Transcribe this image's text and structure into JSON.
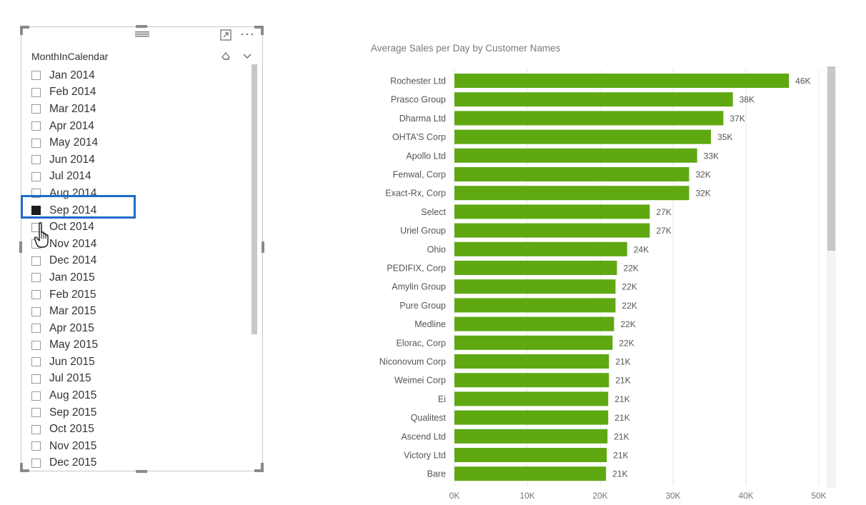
{
  "slicer": {
    "title": "MonthInCalendar",
    "selected": "Sep 2014",
    "items": [
      {
        "label": "Jan 2014",
        "checked": false
      },
      {
        "label": "Feb 2014",
        "checked": false
      },
      {
        "label": "Mar 2014",
        "checked": false
      },
      {
        "label": "Apr 2014",
        "checked": false
      },
      {
        "label": "May 2014",
        "checked": false
      },
      {
        "label": "Jun 2014",
        "checked": false
      },
      {
        "label": "Jul 2014",
        "checked": false
      },
      {
        "label": "Aug 2014",
        "checked": false
      },
      {
        "label": "Sep 2014",
        "checked": true
      },
      {
        "label": "Oct 2014",
        "checked": false
      },
      {
        "label": "Nov 2014",
        "checked": false
      },
      {
        "label": "Dec 2014",
        "checked": false
      },
      {
        "label": "Jan 2015",
        "checked": false
      },
      {
        "label": "Feb 2015",
        "checked": false
      },
      {
        "label": "Mar 2015",
        "checked": false
      },
      {
        "label": "Apr 2015",
        "checked": false
      },
      {
        "label": "May 2015",
        "checked": false
      },
      {
        "label": "Jun 2015",
        "checked": false
      },
      {
        "label": "Jul 2015",
        "checked": false
      },
      {
        "label": "Aug 2015",
        "checked": false
      },
      {
        "label": "Sep 2015",
        "checked": false
      },
      {
        "label": "Oct 2015",
        "checked": false
      },
      {
        "label": "Nov 2015",
        "checked": false
      },
      {
        "label": "Dec 2015",
        "checked": false
      }
    ],
    "more_label": "···"
  },
  "colors": {
    "bar": "#5fa811",
    "highlight": "#1e6ac9",
    "grid": "#e6e6e6"
  },
  "chart_data": {
    "type": "bar",
    "orientation": "horizontal",
    "title": "Average Sales per Day by Customer Names",
    "categories": [
      "Rochester Ltd",
      "Prasco Group",
      "Dharma Ltd",
      "OHTA'S Corp",
      "Apollo Ltd",
      "Fenwal, Corp",
      "Exact-Rx, Corp",
      "Select",
      "Uriel Group",
      "Ohio",
      "PEDIFIX, Corp",
      "Amylin Group",
      "Pure Group",
      "Medline",
      "Elorac, Corp",
      "Niconovum Corp",
      "Weimei Corp",
      "Ei",
      "Qualitest",
      "Ascend Ltd",
      "Victory Ltd",
      "Bare"
    ],
    "values": [
      45900,
      38200,
      36900,
      35200,
      33300,
      32200,
      32200,
      26800,
      26800,
      23700,
      22300,
      22100,
      22100,
      21900,
      21700,
      21200,
      21200,
      21100,
      21100,
      21000,
      20900,
      20800
    ],
    "value_labels": [
      "46K",
      "38K",
      "37K",
      "35K",
      "33K",
      "32K",
      "32K",
      "27K",
      "27K",
      "24K",
      "22K",
      "22K",
      "22K",
      "22K",
      "22K",
      "21K",
      "21K",
      "21K",
      "21K",
      "21K",
      "21K",
      "21K"
    ],
    "xticks": [
      0,
      10000,
      20000,
      30000,
      40000,
      50000
    ],
    "xtick_labels": [
      "0K",
      "10K",
      "20K",
      "30K",
      "40K",
      "50K"
    ],
    "xlim": [
      0,
      50000
    ],
    "grid": true
  }
}
